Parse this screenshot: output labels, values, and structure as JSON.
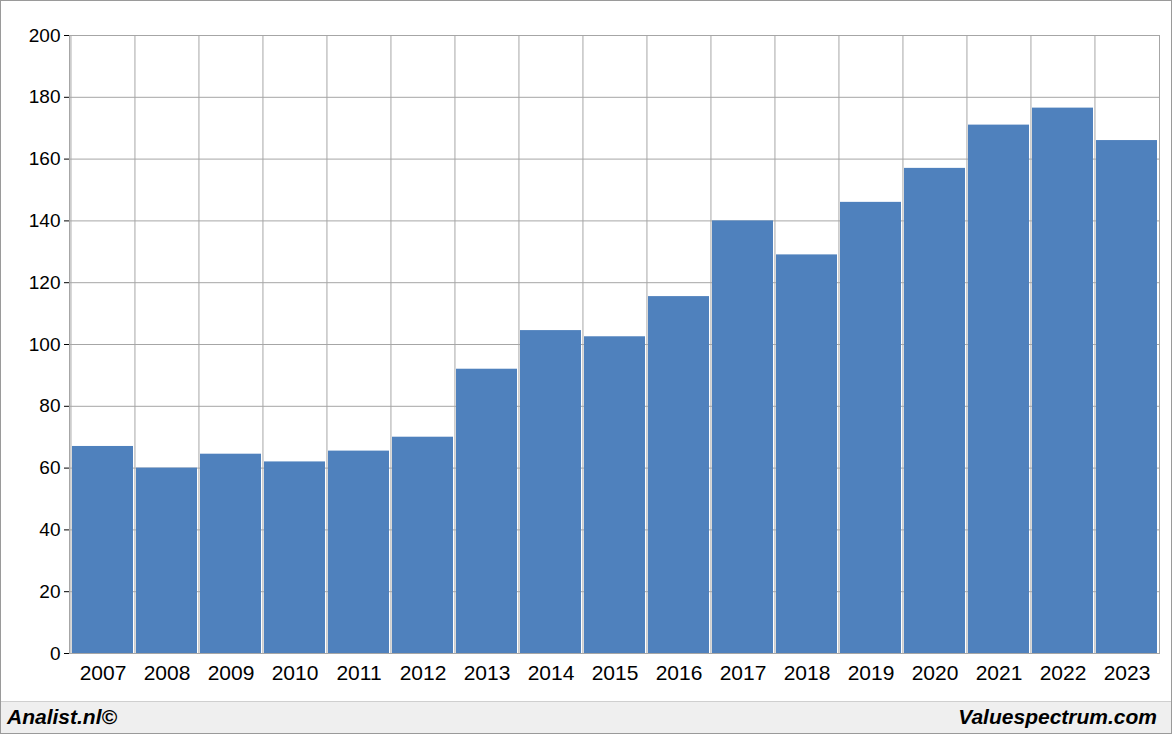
{
  "chart_data": {
    "type": "bar",
    "categories": [
      "2007",
      "2008",
      "2009",
      "2010",
      "2011",
      "2012",
      "2013",
      "2014",
      "2015",
      "2016",
      "2017",
      "2018",
      "2019",
      "2020",
      "2021",
      "2022",
      "2023"
    ],
    "values": [
      67,
      60,
      64.5,
      62,
      65.5,
      70,
      92,
      104.5,
      102.5,
      115.5,
      140,
      129,
      146,
      157,
      171,
      176.5,
      166
    ],
    "color": "#4f81bd",
    "ylim": [
      0,
      200
    ],
    "yticks": [
      0,
      20,
      40,
      60,
      80,
      100,
      120,
      140,
      160,
      180,
      200
    ],
    "grid": true,
    "annotations": [
      "Analist.nl©",
      "Valuespectrum.com"
    ]
  }
}
